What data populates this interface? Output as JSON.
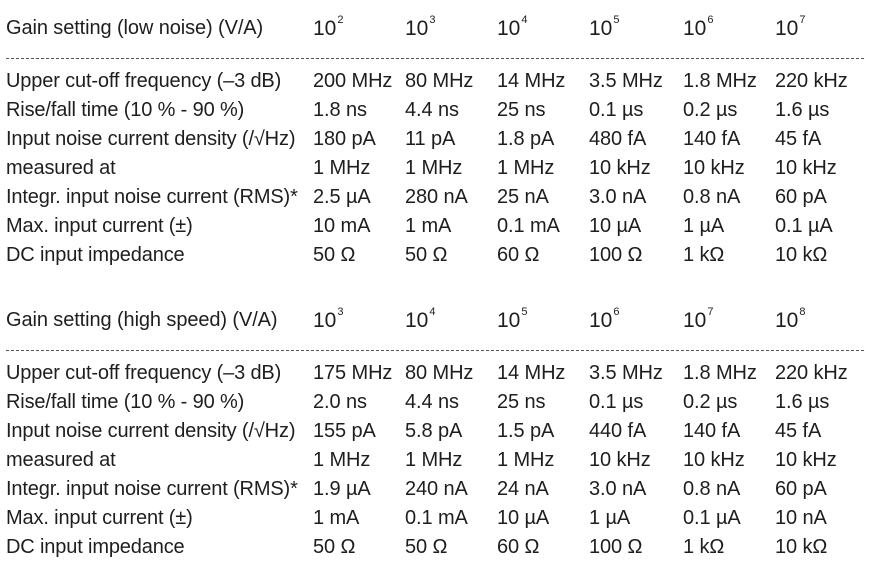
{
  "low_noise": {
    "gain_label": "Gain setting (low noise) (V/A)",
    "gains": [
      {
        "base": "10",
        "exp": "2"
      },
      {
        "base": "10",
        "exp": "3"
      },
      {
        "base": "10",
        "exp": "4"
      },
      {
        "base": "10",
        "exp": "5"
      },
      {
        "base": "10",
        "exp": "6"
      },
      {
        "base": "10",
        "exp": "7"
      }
    ],
    "rows": [
      {
        "label": "Upper cut-off frequency (–3 dB)",
        "values": [
          "200 MHz",
          "80 MHz",
          "14 MHz",
          "3.5 MHz",
          "1.8 MHz",
          "220 kHz"
        ]
      },
      {
        "label": "Rise/fall time (10 % - 90 %)",
        "values": [
          "1.8 ns",
          "4.4 ns",
          "25 ns",
          "0.1 µs",
          "0.2 µs",
          "1.6 µs"
        ]
      },
      {
        "label": "Input noise current density (/√Hz)",
        "values": [
          "180 pA",
          "11 pA",
          "1.8 pA",
          "480 fA",
          "140 fA",
          "45 fA"
        ]
      },
      {
        "label": "measured at",
        "values": [
          "1 MHz",
          "1 MHz",
          "1 MHz",
          "10 kHz",
          "10 kHz",
          "10 kHz"
        ]
      },
      {
        "label": "Integr. input noise current (RMS)*",
        "values": [
          "2.5 µA",
          "280 nA",
          "25 nA",
          "3.0 nA",
          "0.8 nA",
          "60 pA"
        ]
      },
      {
        "label": "Max. input current (±)",
        "values": [
          "10 mA",
          "1 mA",
          "0.1 mA",
          "10 µA",
          "1 µA",
          "0.1 µA"
        ]
      },
      {
        "label": "DC input impedance",
        "values": [
          "50 Ω",
          "50 Ω",
          "60 Ω",
          "100 Ω",
          "1 kΩ",
          "10 kΩ"
        ]
      }
    ]
  },
  "high_speed": {
    "gain_label": "Gain setting (high speed) (V/A)",
    "gains": [
      {
        "base": "10",
        "exp": "3"
      },
      {
        "base": "10",
        "exp": "4"
      },
      {
        "base": "10",
        "exp": "5"
      },
      {
        "base": "10",
        "exp": "6"
      },
      {
        "base": "10",
        "exp": "7"
      },
      {
        "base": "10",
        "exp": "8"
      }
    ],
    "rows": [
      {
        "label": "Upper cut-off frequency (–3 dB)",
        "values": [
          "175 MHz",
          "80 MHz",
          "14 MHz",
          "3.5 MHz",
          "1.8 MHz",
          "220 kHz"
        ]
      },
      {
        "label": "Rise/fall time (10 % - 90 %)",
        "values": [
          "2.0 ns",
          "4.4 ns",
          "25 ns",
          "0.1 µs",
          "0.2 µs",
          "1.6 µs"
        ]
      },
      {
        "label": "Input noise current density (/√Hz)",
        "values": [
          "155 pA",
          "5.8 pA",
          "1.5 pA",
          "440 fA",
          "140 fA",
          "45 fA"
        ]
      },
      {
        "label": "measured at",
        "values": [
          "1 MHz",
          "1 MHz",
          "1 MHz",
          "10 kHz",
          "10 kHz",
          "10 kHz"
        ]
      },
      {
        "label": "Integr. input noise current (RMS)*",
        "values": [
          "1.9 µA",
          "240 nA",
          "24 nA",
          "3.0 nA",
          "0.8 nA",
          "60 pA"
        ]
      },
      {
        "label": "Max. input current (±)",
        "values": [
          "1 mA",
          "0.1 mA",
          "10 µA",
          "1 µA",
          "0.1 µA",
          "10 nA"
        ]
      },
      {
        "label": "DC input impedance",
        "values": [
          "50 Ω",
          "50 Ω",
          "60 Ω",
          "100 Ω",
          "1 kΩ",
          "10 kΩ"
        ]
      }
    ]
  }
}
